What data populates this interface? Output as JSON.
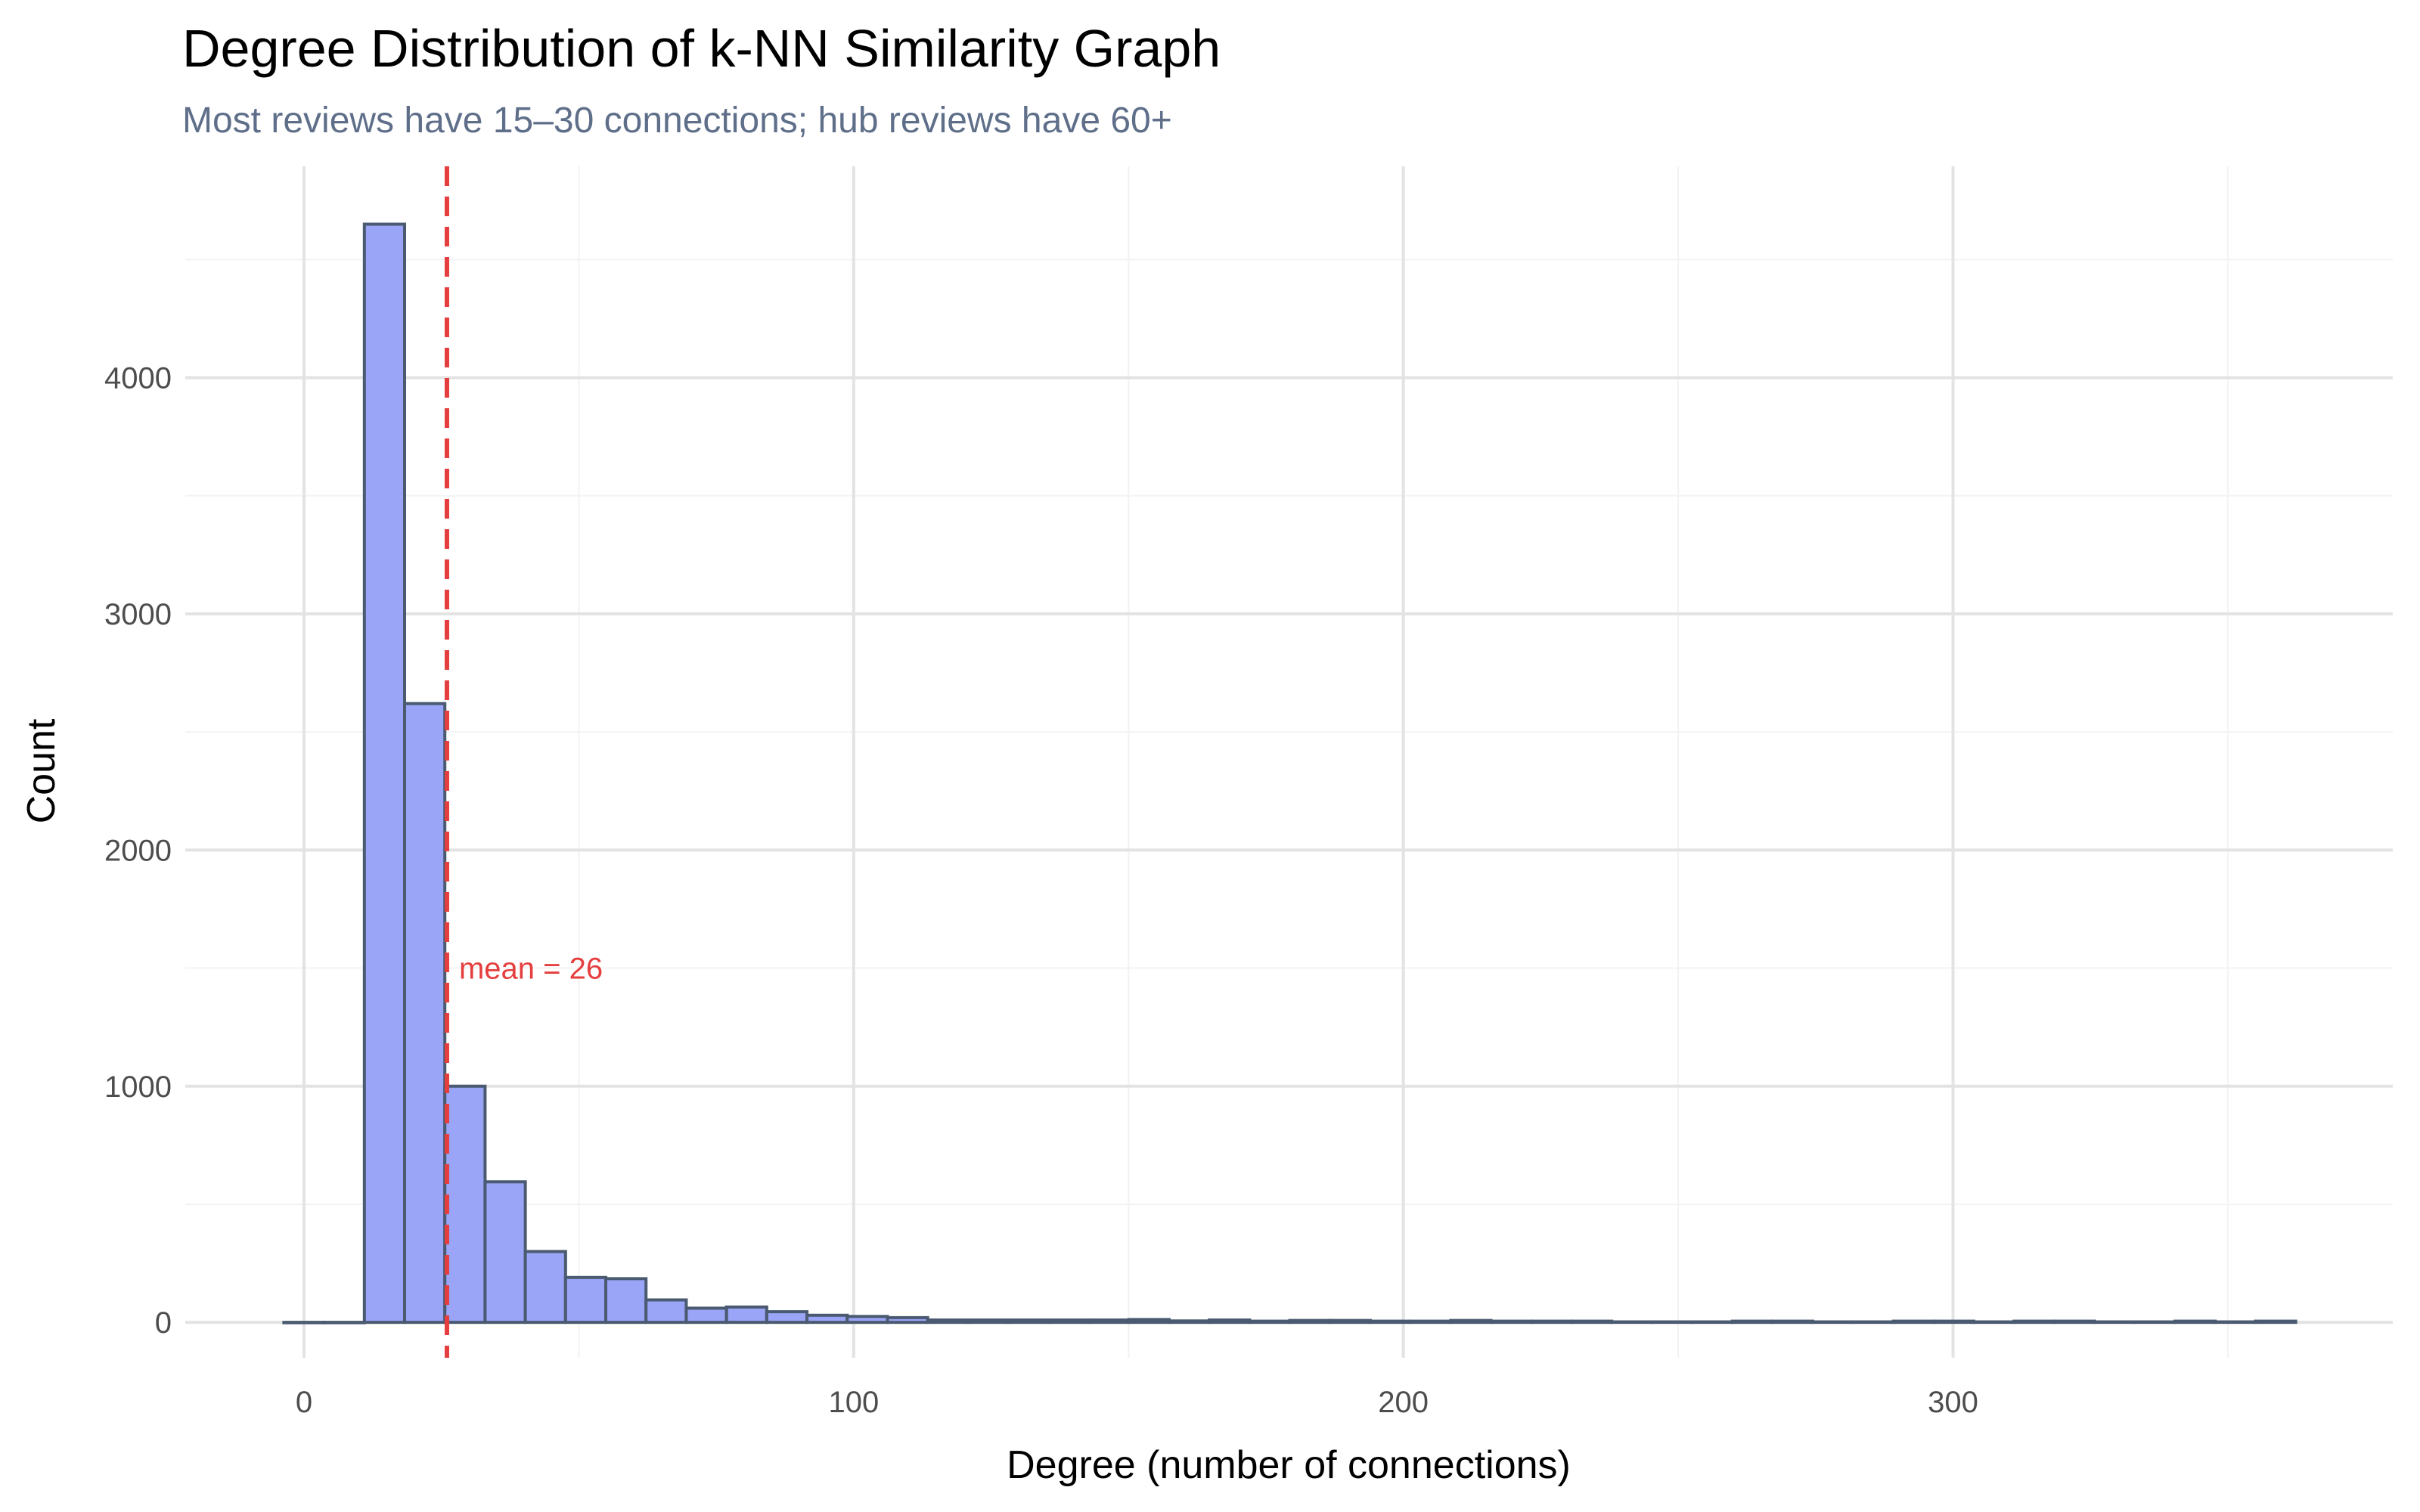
{
  "chart_data": {
    "type": "bar",
    "title": "Degree Distribution of k-NN Similarity Graph",
    "subtitle": "Most reviews have 15–30 connections; hub reviews have 60+",
    "xlabel": "Degree (number of connections)",
    "ylabel": "Count",
    "xlim": [
      -21.6,
      380
    ],
    "ylim": [
      -150,
      4895
    ],
    "xticks": [
      0,
      100,
      200,
      300
    ],
    "yticks": [
      0,
      1000,
      2000,
      3000,
      4000
    ],
    "grid": true,
    "bin_start": -3.66,
    "bin_width": 7.32,
    "values": [
      0,
      0,
      4650,
      2620,
      1000,
      595,
      300,
      190,
      185,
      95,
      60,
      65,
      45,
      30,
      25,
      20,
      10,
      10,
      10,
      10,
      10,
      12,
      6,
      10,
      5,
      8,
      8,
      5,
      5,
      8,
      5,
      5,
      5,
      2,
      2,
      2,
      5,
      5,
      2,
      2,
      5,
      5,
      2,
      5,
      5,
      2,
      2,
      5,
      2,
      5
    ],
    "fill_color": "#9aa5f7",
    "edge_color": "#4a5a70",
    "mean_line": {
      "value": 26,
      "label": "mean = 26",
      "color": "#e53e3e",
      "label_y": 1500
    }
  }
}
